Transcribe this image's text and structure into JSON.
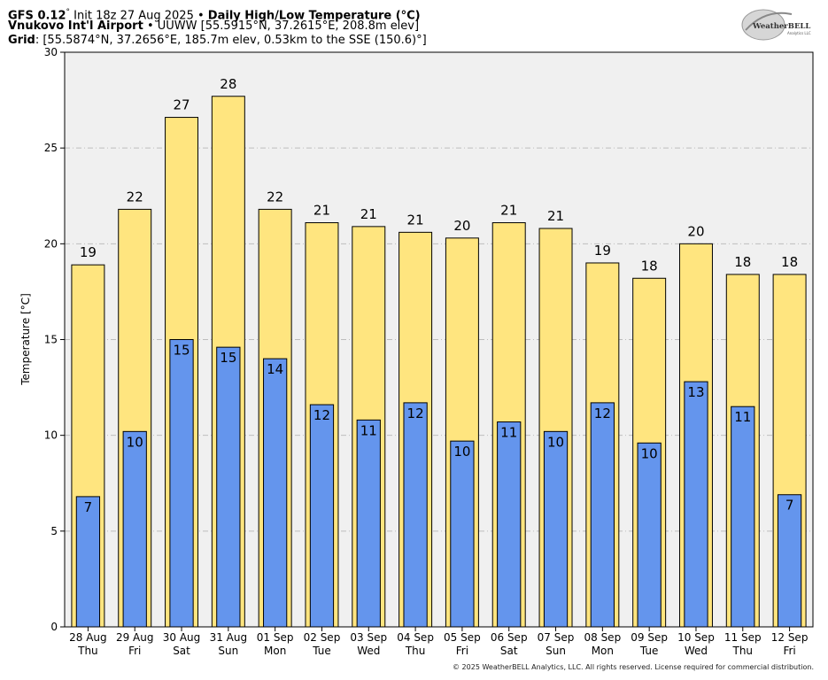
{
  "header": {
    "model": "GFS 0.12",
    "deg": "°",
    "init": "Init 18z 27 Aug 2025",
    "bullet": "•",
    "product": "Daily High/Low Temperature (°C)",
    "station_name": "Vnukovo Int'l Airport",
    "station_info": "UUWW [55.5915°N, 37.2615°E, 208.8m elev]",
    "grid_label": "Grid",
    "grid_info": ": [55.5874°N, 37.2656°E, 185.7m elev, 0.53km to the SSE (150.6)°]"
  },
  "logo": {
    "text": "WeatherBELL",
    "sub": "Analytics LLC"
  },
  "footer": "© 2025 WeatherBELL Analytics, LLC. All rights reserved. License required for commercial distribution.",
  "chart_data": {
    "type": "bar",
    "ylabel": "Temperature [°C]",
    "ylim": [
      0,
      30
    ],
    "yticks": [
      0,
      5,
      10,
      15,
      20,
      25,
      30
    ],
    "grid": true,
    "dates": [
      "28 Aug",
      "29 Aug",
      "30 Aug",
      "31 Aug",
      "01 Sep",
      "02 Sep",
      "03 Sep",
      "04 Sep",
      "05 Sep",
      "06 Sep",
      "07 Sep",
      "08 Sep",
      "09 Sep",
      "10 Sep",
      "11 Sep",
      "12 Sep"
    ],
    "weekdays": [
      "Thu",
      "Fri",
      "Sat",
      "Sun",
      "Mon",
      "Tue",
      "Wed",
      "Thu",
      "Fri",
      "Sat",
      "Sun",
      "Mon",
      "Tue",
      "Wed",
      "Thu",
      "Fri"
    ],
    "series": [
      {
        "values": [
          18.9,
          21.8,
          26.6,
          27.7,
          21.8,
          21.1,
          20.9,
          20.6,
          20.3,
          21.1,
          20.8,
          19.0,
          18.2,
          20.0,
          18.4,
          18.4
        ],
        "color": "#FFE57F"
      },
      {
        "values": [
          6.8,
          10.2,
          15.0,
          14.6,
          14.0,
          11.6,
          10.8,
          11.7,
          9.7,
          10.7,
          10.2,
          11.7,
          9.6,
          12.8,
          11.5,
          6.9
        ],
        "color": "#6495ED"
      }
    ],
    "data_labels": {
      "high": [
        "19",
        "22",
        "27",
        "28",
        "22",
        "21",
        "21",
        "21",
        "20",
        "21",
        "21",
        "19",
        "18",
        "20",
        "18",
        "18"
      ],
      "low": [
        "7",
        "10",
        "15",
        "15",
        "14",
        "12",
        "11",
        "12",
        "10",
        "11",
        "10",
        "12",
        "10",
        "13",
        "11",
        "7"
      ]
    },
    "colors": {
      "plot_bg": "#F0F0F0",
      "grid": "#BDBDBD"
    }
  }
}
